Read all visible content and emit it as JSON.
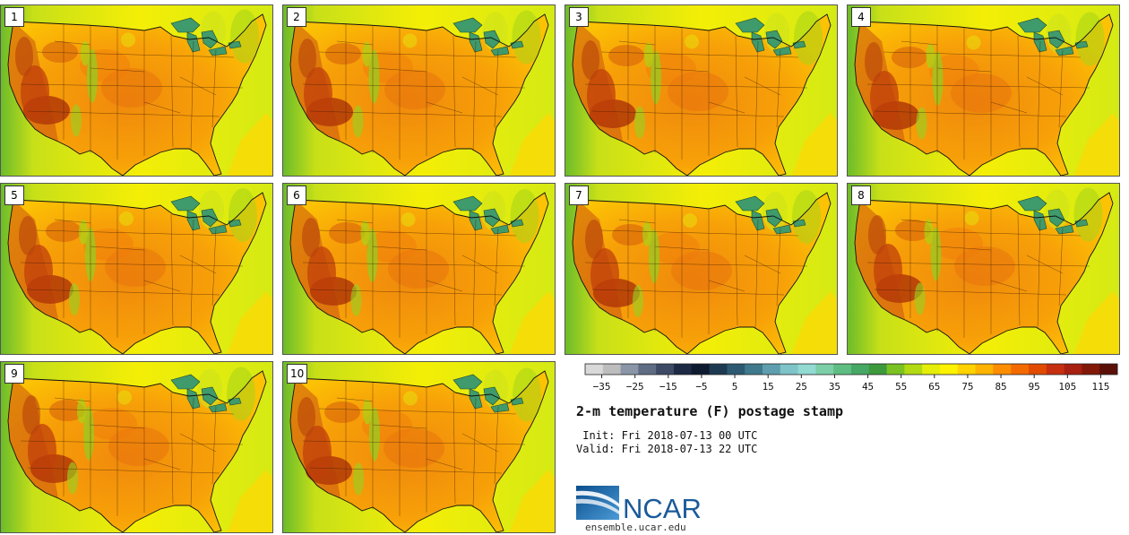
{
  "panels": [
    {
      "label": "1",
      "variant": 0
    },
    {
      "label": "2",
      "variant": 1
    },
    {
      "label": "3",
      "variant": 2
    },
    {
      "label": "4",
      "variant": 3
    },
    {
      "label": "5",
      "variant": 4
    },
    {
      "label": "6",
      "variant": 5
    },
    {
      "label": "7",
      "variant": 6
    },
    {
      "label": "8",
      "variant": 7
    },
    {
      "label": "9",
      "variant": 8
    },
    {
      "label": "10",
      "variant": 9
    }
  ],
  "legend": {
    "ticks": [
      "−35",
      "−25",
      "−15",
      "−5",
      "5",
      "15",
      "25",
      "35",
      "45",
      "55",
      "65",
      "75",
      "85",
      "95",
      "105",
      "115"
    ],
    "colors": [
      "#d9d9d9",
      "#bdbdbd",
      "#8a96a8",
      "#5e6c84",
      "#3c4a66",
      "#1c2a44",
      "#0d1a30",
      "#1e3a52",
      "#2d5a72",
      "#3f7a8c",
      "#5e9eae",
      "#7ec4c8",
      "#92dad2",
      "#7ccfa8",
      "#5ebd82",
      "#46a864",
      "#3c9a3c",
      "#7ac222",
      "#b2da12",
      "#e4ee08",
      "#fef200",
      "#ffd200",
      "#fdb300",
      "#fc8e00",
      "#f36a00",
      "#e24a00",
      "#c63010",
      "#a82010",
      "#821808",
      "#5a1006"
    ],
    "min": -40,
    "max": 120
  },
  "title": "2-m temperature (F) postage stamp",
  "init": " Init: Fri 2018-07-13 00 UTC",
  "valid": "Valid: Fri 2018-07-13 22 UTC",
  "logo": {
    "text": "NCAR",
    "url": "ensemble.ucar.edu",
    "color": "#1a5a9a"
  }
}
